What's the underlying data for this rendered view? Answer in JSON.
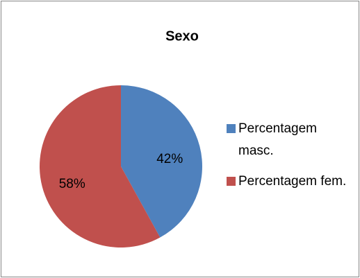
{
  "chart_data": {
    "type": "pie",
    "title": "Sexo",
    "categories": [
      "Percentagem masc.",
      "Percentagem fem."
    ],
    "values": [
      42,
      58
    ],
    "value_labels": [
      "42%",
      "58%"
    ],
    "colors": [
      "#4f81bd",
      "#c0504d"
    ],
    "legend": "right"
  }
}
